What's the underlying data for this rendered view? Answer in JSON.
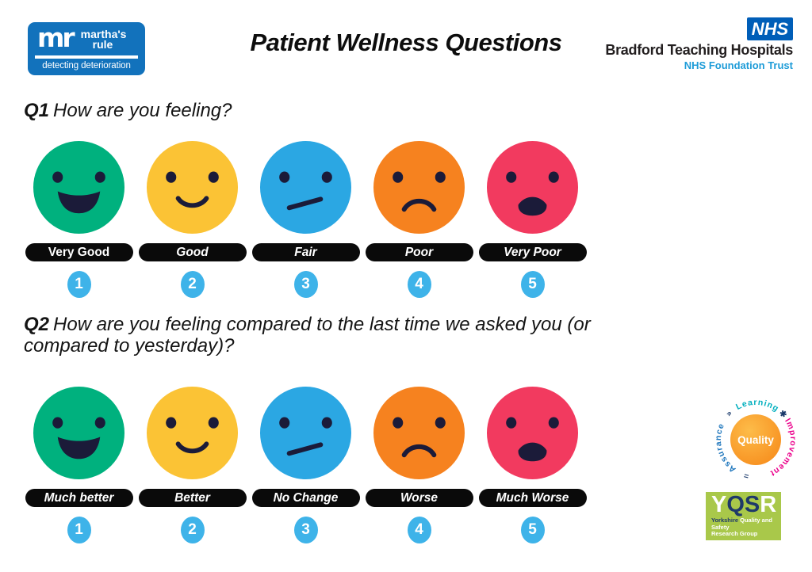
{
  "header": {
    "marthas_rule": {
      "monogram": "mr",
      "name_line1": "martha's",
      "name_line2": "rule",
      "tagline": "detecting deterioration"
    },
    "title": "Patient Wellness Questions",
    "nhs": {
      "logo": "NHS",
      "org": "Bradford Teaching Hospitals",
      "trust": "NHS Foundation Trust"
    }
  },
  "questions": [
    {
      "number": "Q1",
      "text": "How are you feeling?",
      "options": [
        {
          "label": "Very Good",
          "value": "1",
          "face": "big-smile",
          "color": "#00B17E",
          "italic": false
        },
        {
          "label": "Good",
          "value": "2",
          "face": "smile",
          "color": "#FBC335",
          "italic": true
        },
        {
          "label": "Fair",
          "value": "3",
          "face": "neutral-slant",
          "color": "#2BA7E3",
          "italic": true
        },
        {
          "label": "Poor",
          "value": "4",
          "face": "frown",
          "color": "#F6821F",
          "italic": true
        },
        {
          "label": "Very Poor",
          "value": "5",
          "face": "open-frown",
          "color": "#F23A5F",
          "italic": true
        }
      ]
    },
    {
      "number": "Q2",
      "text": "How are you feeling compared to the last time we asked you (or compared to yesterday)?",
      "options": [
        {
          "label": "Much better",
          "value": "1",
          "face": "big-smile",
          "color": "#00B17E",
          "italic": true
        },
        {
          "label": "Better",
          "value": "2",
          "face": "smile",
          "color": "#FBC335",
          "italic": true
        },
        {
          "label": "No Change",
          "value": "3",
          "face": "neutral-slant",
          "color": "#2BA7E3",
          "italic": true
        },
        {
          "label": "Worse",
          "value": "4",
          "face": "frown",
          "color": "#F6821F",
          "italic": true
        },
        {
          "label": "Much Worse",
          "value": "5",
          "face": "open-frown",
          "color": "#F23A5F",
          "italic": true
        }
      ]
    }
  ],
  "footer_logos": {
    "quality": {
      "center": "Quality",
      "word_top": "Learning",
      "word_right": "Improvement",
      "word_left": "Assurance",
      "symbol_bottom": "=",
      "symbol_left": "»",
      "symbol_right": "✱",
      "color_top": "#00AFBE",
      "color_right": "#EB008B",
      "color_left": "#1C75BC"
    },
    "yqsr": {
      "acronym": "YQSR",
      "acronym_tones": [
        "light",
        "dark",
        "dark",
        "light"
      ],
      "line1_dark": "Yorkshire",
      "line1_light": "Quality and Safety",
      "line2": "Research Group"
    }
  },
  "ui_colors": {
    "number_badge": "#3EB3E9",
    "pill_bg": "#0A0A0A",
    "face_feature": "#1B1B39",
    "marthas_blue": "#1272BC",
    "nhs_blue": "#005EB8",
    "nhs_light_blue": "#1E9CD8",
    "yqsr_green": "#A9C84A",
    "yqsr_navy": "#1F3969",
    "quality_orange": "#F89C1C"
  }
}
